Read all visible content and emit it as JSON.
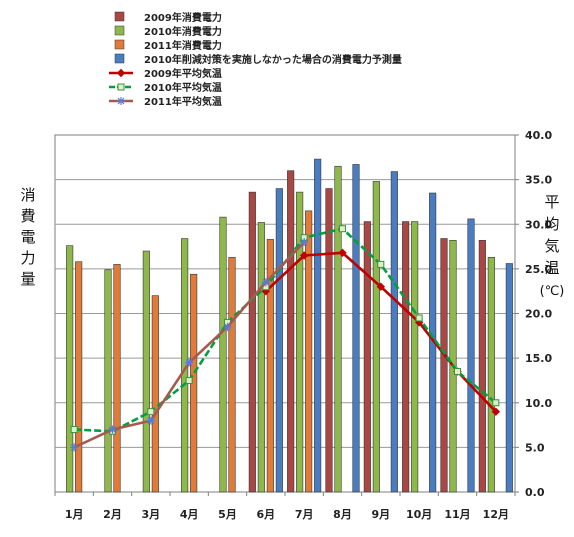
{
  "chart_data": {
    "type": "bar",
    "categories": [
      "1月",
      "2月",
      "3月",
      "4月",
      "5月",
      "6月",
      "7月",
      "8月",
      "9月",
      "10月",
      "11月",
      "12月"
    ],
    "ylabel_left": "消費電力量",
    "ylabel_right": "平均気温(℃)",
    "y2lim": [
      0,
      40
    ],
    "y2ticks": [
      "0.0",
      "5.0",
      "10.0",
      "15.0",
      "20.0",
      "25.0",
      "30.0",
      "35.0",
      "40.0"
    ],
    "grid": true,
    "legend_position": "top",
    "series": [
      {
        "name": "2009年消費電力",
        "kind": "bar",
        "color": "#a84744",
        "axis": "left",
        "values": [
          null,
          null,
          null,
          null,
          null,
          33.6,
          36.0,
          34.0,
          30.3,
          30.3,
          28.4,
          28.2
        ]
      },
      {
        "name": "2010年消費電力",
        "kind": "bar",
        "color": "#8fb84b",
        "axis": "left",
        "values": [
          27.6,
          24.9,
          27.0,
          28.4,
          30.8,
          30.2,
          33.6,
          36.5,
          34.8,
          30.3,
          28.2,
          26.3
        ]
      },
      {
        "name": "2011年消費電力",
        "kind": "bar",
        "color": "#e07b39",
        "axis": "left",
        "values": [
          25.8,
          25.5,
          22.0,
          24.4,
          26.3,
          28.3,
          31.5,
          null,
          null,
          null,
          null,
          null
        ]
      },
      {
        "name": "2010年削減対策を実施しなかった場合の消費電力予測量",
        "kind": "bar",
        "color": "#4a7dbf",
        "axis": "left",
        "values": [
          null,
          null,
          null,
          null,
          null,
          34.0,
          37.3,
          36.7,
          35.9,
          33.5,
          30.6,
          25.6
        ]
      },
      {
        "name": "2009年平均気温",
        "kind": "line",
        "color": "#c00000",
        "axis": "right",
        "marker": "diamond",
        "values": [
          null,
          null,
          null,
          null,
          null,
          22.5,
          26.5,
          26.8,
          23.0,
          19.0,
          13.5,
          9.0
        ]
      },
      {
        "name": "2010年平均気温",
        "kind": "line",
        "color": "#00a040",
        "axis": "right",
        "marker": "square",
        "values": [
          7.0,
          6.8,
          9.0,
          12.5,
          19.0,
          23.0,
          28.5,
          29.5,
          25.5,
          19.5,
          13.5,
          10.0
        ]
      },
      {
        "name": "2011年平均気温",
        "kind": "line",
        "color": "#a65a4e",
        "axis": "right",
        "marker": "asterisk",
        "values": [
          5.0,
          7.0,
          8.0,
          14.5,
          18.5,
          23.5,
          28.0,
          null,
          null,
          null,
          null,
          null
        ]
      }
    ]
  }
}
